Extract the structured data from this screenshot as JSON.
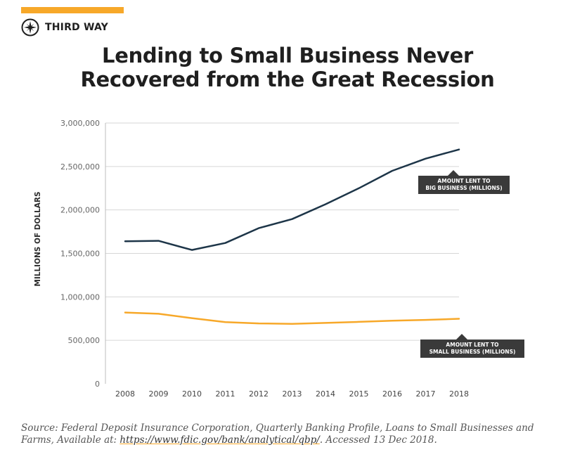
{
  "colors": {
    "accent": "#f7a829",
    "big_business_line": "#1d3548",
    "small_business_line": "#f7a829",
    "label_box": "#3a3a3a",
    "grid": "#d6d6d6"
  },
  "brand": {
    "name": "THIRD WAY",
    "icon": "compass-star-icon"
  },
  "title": {
    "line1": "Lending to Small Business Never",
    "line2": "Recovered from the Great Recession"
  },
  "chart_data": {
    "type": "line",
    "x": [
      2008,
      2009,
      2010,
      2011,
      2012,
      2013,
      2014,
      2015,
      2016,
      2017,
      2018
    ],
    "ylabel": "MILLIONS OF DOLLARS",
    "xlabel": "",
    "ylim": [
      0,
      3000000
    ],
    "yticks": [
      0,
      500000,
      1000000,
      1500000,
      2000000,
      2500000,
      3000000
    ],
    "ytick_labels": [
      "0",
      "500,000",
      "1,000,000",
      "1,500,000",
      "2,000,000",
      "2,500,000",
      "3,000,000"
    ],
    "grid": true,
    "series": [
      {
        "name": "AMOUNT LENT TO BIG BUSINESS (MILLIONS)",
        "label_lines": [
          "AMOUNT LENT TO",
          "BIG BUSINESS (MILLIONS)"
        ],
        "values": [
          1640000,
          1645000,
          1540000,
          1620000,
          1790000,
          1895000,
          2065000,
          2250000,
          2450000,
          2590000,
          2695000
        ]
      },
      {
        "name": "AMOUNT LENT TO SMALL BUSINESS (MILLIONS)",
        "label_lines": [
          "AMOUNT LENT TO",
          "SMALL BUSINESS (MILLIONS)"
        ],
        "values": [
          820000,
          805000,
          755000,
          710000,
          695000,
          690000,
          700000,
          712000,
          725000,
          735000,
          748000
        ]
      }
    ]
  },
  "source": {
    "prefix": "Source: Federal Deposit Insurance Corporation, Quarterly Banking Profile, Loans to Small Businesses and Farms, Available at: ",
    "link_text": "https://www.fdic.gov/bank/analytical/qbp/",
    "suffix": ". Accessed 13 Dec 2018."
  }
}
